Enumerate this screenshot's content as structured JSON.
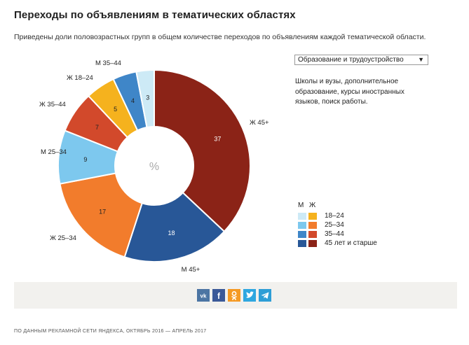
{
  "header": {
    "title": "Переходы по объявлениям в тематических областях",
    "subtitle": "Приведены доли половозрастных групп в общем количестве переходов по объявлениям каждой тематической области."
  },
  "controls": {
    "category_select": "Образование и трудоустройство",
    "description": "Школы и вузы, дополнительное образование, курсы иностранных языков, поиск работы."
  },
  "chart_data": {
    "type": "pie",
    "donut": true,
    "center_label": "%",
    "slices": [
      {
        "label": "Ж 45+",
        "value": 37,
        "color": "#8b2317"
      },
      {
        "label": "М 45+",
        "value": 18,
        "color": "#285797"
      },
      {
        "label": "Ж 25–34",
        "value": 17,
        "color": "#f27c2c"
      },
      {
        "label": "М 25–34",
        "value": 9,
        "color": "#7dc8ee"
      },
      {
        "label": "Ж 35–44",
        "value": 7,
        "color": "#d2492b"
      },
      {
        "label": "Ж 18–24",
        "value": 5,
        "color": "#f5b21e"
      },
      {
        "label": "М 35–44",
        "value": 4,
        "color": "#3f86c8"
      },
      {
        "label": "М 18–24",
        "value": 3,
        "color": "#cdeaf6"
      }
    ]
  },
  "legend": {
    "header_m": "М",
    "header_f": "Ж",
    "rows": [
      {
        "label": "18–24",
        "m_color": "#cdeaf6",
        "f_color": "#f5b21e"
      },
      {
        "label": "25–34",
        "m_color": "#7dc8ee",
        "f_color": "#f27c2c"
      },
      {
        "label": "35–44",
        "m_color": "#3f86c8",
        "f_color": "#d2492b"
      },
      {
        "label": "45 лет и старше",
        "m_color": "#285797",
        "f_color": "#8b2317"
      }
    ]
  },
  "share": {
    "buttons": [
      {
        "name": "vk-share-button",
        "icon": "vk-icon",
        "glyph": "vk",
        "color": "#4c75a3"
      },
      {
        "name": "facebook-share-button",
        "icon": "facebook-icon",
        "glyph": "f",
        "color": "#3b5998"
      },
      {
        "name": "odnoklassniki-share-button",
        "icon": "odnoklassniki-icon",
        "glyph": "ok",
        "color": "#f59a24"
      },
      {
        "name": "twitter-share-button",
        "icon": "twitter-icon",
        "glyph": "t",
        "color": "#2fa7e0"
      },
      {
        "name": "telegram-share-button",
        "icon": "telegram-icon",
        "glyph": "tg",
        "color": "#2e9ed6"
      }
    ]
  },
  "footer": {
    "source": "ПО ДАННЫМ РЕКЛАМНОЙ СЕТИ ЯНДЕКСА, ОКТЯБРЬ 2016 — АПРЕЛЬ 2017"
  }
}
